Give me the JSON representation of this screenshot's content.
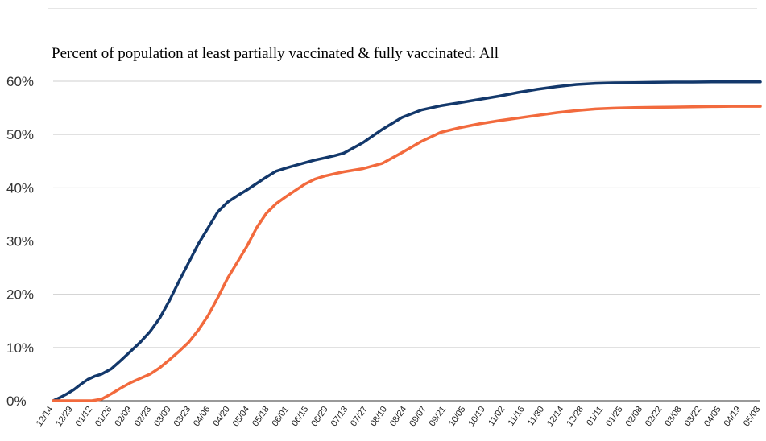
{
  "chart_data": {
    "type": "line",
    "title": "Percent of population at least partially vaccinated & fully vaccinated: All",
    "xlabel": "",
    "ylabel": "",
    "ylim": [
      0,
      60
    ],
    "y_ticks": [
      "0%",
      "10%",
      "20%",
      "30%",
      "40%",
      "50%",
      "60%"
    ],
    "grid": true,
    "legend": "none",
    "x_ticks": [
      "12/14",
      "12/29",
      "01/12",
      "01/26",
      "02/09",
      "02/23",
      "03/09",
      "03/23",
      "04/06",
      "04/20",
      "05/04",
      "05/18",
      "06/01",
      "06/15",
      "06/29",
      "07/13",
      "07/27",
      "08/10",
      "08/24",
      "09/07",
      "09/21",
      "10/05",
      "10/19",
      "11/02",
      "11/16",
      "11/30",
      "12/14",
      "12/28",
      "01/11",
      "01/25",
      "02/08",
      "02/22",
      "03/08",
      "03/22",
      "04/05",
      "04/19",
      "05/03"
    ],
    "x_range": [
      0,
      511
    ],
    "series": [
      {
        "color": "#13386b",
        "x": [
          0,
          5,
          10,
          15,
          20,
          25,
          30,
          35,
          42,
          49,
          56,
          63,
          70,
          77,
          84,
          91,
          98,
          105,
          112,
          119,
          126,
          133,
          140,
          147,
          154,
          161,
          168,
          175,
          182,
          189,
          196,
          203,
          210,
          224,
          238,
          252,
          266,
          280,
          294,
          308,
          322,
          336,
          350,
          364,
          378,
          392,
          406,
          420,
          434,
          448,
          462,
          476,
          490,
          511
        ],
        "y": [
          0,
          0.6,
          1.3,
          2.1,
          3.1,
          4.0,
          4.6,
          5.0,
          6.0,
          7.6,
          9.3,
          11.0,
          13.0,
          15.5,
          18.8,
          22.5,
          26.0,
          29.5,
          32.5,
          35.5,
          37.3,
          38.5,
          39.6,
          40.8,
          42.0,
          43.1,
          43.7,
          44.2,
          44.7,
          45.2,
          45.6,
          46.0,
          46.5,
          48.5,
          51.0,
          53.2,
          54.6,
          55.4,
          56.0,
          56.6,
          57.2,
          57.9,
          58.5,
          59.0,
          59.4,
          59.6,
          59.7,
          59.75,
          59.8,
          59.85,
          59.85,
          59.9,
          59.9,
          59.9
        ]
      },
      {
        "color": "#f26a3d",
        "x": [
          0,
          14,
          21,
          28,
          35,
          42,
          49,
          56,
          63,
          70,
          77,
          84,
          91,
          98,
          105,
          112,
          119,
          126,
          133,
          140,
          147,
          154,
          161,
          168,
          175,
          182,
          189,
          196,
          203,
          210,
          224,
          238,
          252,
          266,
          280,
          294,
          308,
          322,
          336,
          350,
          364,
          378,
          392,
          406,
          420,
          434,
          448,
          462,
          476,
          490,
          511
        ],
        "y": [
          0,
          0,
          0,
          0,
          0.3,
          1.3,
          2.4,
          3.4,
          4.2,
          5.0,
          6.2,
          7.7,
          9.3,
          11.0,
          13.3,
          16.0,
          19.4,
          23.0,
          26.0,
          29.0,
          32.5,
          35.2,
          37.0,
          38.3,
          39.5,
          40.7,
          41.6,
          42.2,
          42.6,
          43.0,
          43.6,
          44.6,
          46.6,
          48.7,
          50.4,
          51.3,
          52.0,
          52.6,
          53.1,
          53.6,
          54.1,
          54.5,
          54.8,
          54.95,
          55.05,
          55.1,
          55.15,
          55.2,
          55.25,
          55.3,
          55.3
        ]
      }
    ]
  }
}
